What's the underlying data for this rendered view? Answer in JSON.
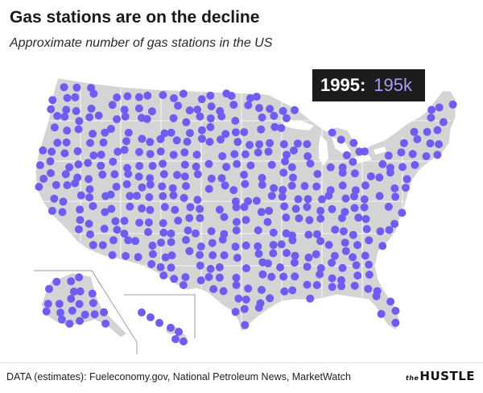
{
  "header": {
    "title": "Gas stations are on the decline",
    "subtitle": "Approximate number of gas stations in the US"
  },
  "counter": {
    "year": "1995",
    "separator": ":",
    "count": "195k"
  },
  "footer": {
    "source": "DATA (estimates): Fueleconomy.gov, National Petroleum News, MarketWatch",
    "brand_prefix": "the",
    "brand_name": "HUSTLE"
  },
  "colors": {
    "land": "#d4d4d4",
    "border": "#ffffff",
    "dot": "#6f5cf2",
    "counter_bg": "#1c1c1c",
    "counter_value": "#a99bff"
  }
}
